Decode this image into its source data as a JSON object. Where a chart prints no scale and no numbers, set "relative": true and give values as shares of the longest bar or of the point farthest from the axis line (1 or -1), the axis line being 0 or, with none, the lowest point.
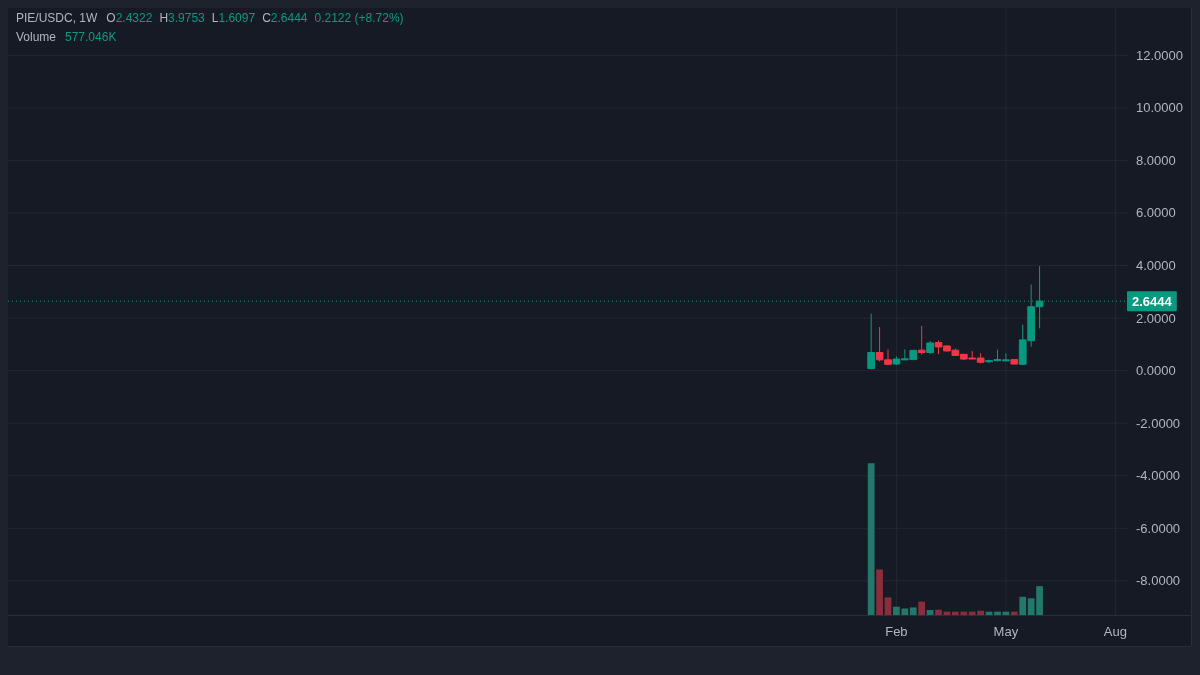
{
  "chart_data": [
    {
      "type": "candlestick",
      "title": "PIE/USDC, 1W",
      "annotations": [
        "O2.4322",
        "H3.9753",
        "L1.6097",
        "C2.6444",
        "0.2122 (+8.72%)"
      ],
      "categories": [
        null,
        null,
        null,
        null,
        null,
        null,
        null,
        null,
        null,
        null,
        null,
        null,
        null,
        null,
        null,
        null,
        null,
        null,
        null,
        null,
        null,
        null,
        null,
        null,
        null,
        null,
        null,
        null,
        null,
        null,
        null,
        null,
        null,
        null,
        null,
        null,
        null,
        null,
        null,
        null,
        null,
        null,
        null,
        null,
        null,
        null,
        null,
        null,
        null,
        null,
        null,
        null,
        null,
        null,
        null,
        null,
        null,
        null,
        null,
        null,
        null,
        null,
        null,
        null,
        null,
        null,
        null,
        null,
        null,
        null,
        null,
        null,
        null,
        null,
        null,
        null,
        null,
        null,
        null,
        null,
        null,
        null,
        null,
        null,
        null,
        null,
        null,
        null,
        null,
        null,
        null,
        null,
        null,
        null,
        null,
        null,
        null,
        null,
        null,
        null,
        null,
        null,
        null,
        null,
        null,
        "Feb",
        null,
        null,
        null,
        null,
        null,
        null,
        null,
        null,
        null,
        null,
        null,
        null,
        "May",
        null,
        null,
        null,
        null,
        null,
        null,
        null,
        null,
        null,
        null,
        null,
        null,
        "Aug",
        null
      ],
      "ohlc": [
        null,
        null,
        null,
        null,
        null,
        null,
        null,
        null,
        null,
        null,
        null,
        null,
        null,
        null,
        null,
        null,
        null,
        null,
        null,
        null,
        null,
        null,
        null,
        null,
        null,
        null,
        null,
        null,
        null,
        null,
        null,
        null,
        null,
        null,
        null,
        null,
        null,
        null,
        null,
        null,
        null,
        null,
        null,
        null,
        null,
        null,
        null,
        null,
        null,
        null,
        null,
        null,
        null,
        null,
        null,
        null,
        null,
        null,
        null,
        null,
        null,
        null,
        null,
        null,
        null,
        null,
        null,
        null,
        null,
        null,
        null,
        null,
        null,
        null,
        null,
        null,
        null,
        null,
        null,
        null,
        null,
        null,
        null,
        null,
        null,
        null,
        null,
        null,
        null,
        null,
        null,
        null,
        null,
        null,
        null,
        null,
        null,
        null,
        null,
        null,
        null,
        null,
        [
          0.08,
          2.17,
          0.05,
          0.69
        ],
        [
          0.69,
          1.66,
          0.35,
          0.41
        ],
        [
          0.41,
          0.8,
          0.2,
          0.24
        ],
        [
          0.25,
          0.54,
          0.21,
          0.44
        ],
        [
          0.41,
          0.81,
          0.4,
          0.45
        ],
        [
          0.42,
          0.78,
          0.42,
          0.77
        ],
        [
          0.78,
          1.7,
          0.61,
          0.69
        ],
        [
          0.69,
          1.13,
          0.63,
          1.05
        ],
        [
          1.07,
          1.15,
          0.63,
          0.9
        ],
        [
          0.94,
          0.96,
          0.72,
          0.75
        ],
        [
          0.78,
          0.84,
          0.56,
          0.58
        ],
        [
          0.62,
          0.64,
          0.4,
          0.44
        ],
        [
          0.48,
          0.75,
          0.44,
          0.44
        ],
        [
          0.48,
          0.66,
          0.27,
          0.32
        ],
        [
          0.34,
          0.42,
          0.28,
          0.38
        ],
        [
          0.38,
          0.8,
          0.35,
          0.42
        ],
        [
          0.4,
          0.65,
          0.35,
          0.41
        ],
        [
          0.42,
          0.43,
          0.23,
          0.25
        ],
        [
          0.24,
          1.75,
          0.21,
          1.17
        ],
        [
          1.14,
          3.28,
          0.91,
          2.43
        ],
        [
          2.4322,
          3.9753,
          1.6097,
          2.6444
        ],
        null,
        null,
        null,
        null,
        null,
        null,
        null,
        null,
        null,
        null
      ],
      "colors": [
        null,
        null,
        null,
        null,
        null,
        null,
        null,
        null,
        null,
        null,
        null,
        null,
        null,
        null,
        null,
        null,
        null,
        null,
        null,
        null,
        null,
        null,
        null,
        null,
        null,
        null,
        null,
        null,
        null,
        null,
        null,
        null,
        null,
        null,
        null,
        null,
        null,
        null,
        null,
        null,
        null,
        null,
        null,
        null,
        null,
        null,
        null,
        null,
        null,
        null,
        null,
        null,
        null,
        null,
        null,
        null,
        null,
        null,
        null,
        null,
        null,
        null,
        null,
        null,
        null,
        null,
        null,
        null,
        null,
        null,
        null,
        null,
        null,
        null,
        null,
        null,
        null,
        null,
        null,
        null,
        null,
        null,
        null,
        null,
        null,
        null,
        null,
        null,
        null,
        null,
        null,
        null,
        null,
        null,
        null,
        null,
        null,
        null,
        null,
        null,
        null,
        null,
        "#089981",
        "#f23645",
        "#f23645",
        "#089981",
        "#089981",
        "#089981",
        "#f23645",
        "#089981",
        "#f23645",
        "#f23645",
        "#f23645",
        "#f23645",
        "#f23645",
        "#f23645",
        "#089981",
        "#089981",
        "#089981",
        "#f23645",
        "#089981",
        "#089981",
        "#089981",
        null,
        null,
        null,
        null,
        null,
        null,
        null,
        null,
        null,
        null
      ],
      "ylim": [
        -9.3,
        13.8
      ],
      "yticks": [
        {
          "value": -8,
          "label": "-8.0000"
        },
        {
          "value": -6,
          "label": "-6.0000"
        },
        {
          "value": -4,
          "label": "-4.0000"
        },
        {
          "value": -2,
          "label": "-2.0000"
        },
        {
          "value": 0,
          "label": "0.0000"
        },
        {
          "value": 2,
          "label": "2.0000"
        },
        {
          "value": 4,
          "label": "4.0000"
        },
        {
          "value": 6,
          "label": "6.0000"
        },
        {
          "value": 8,
          "label": "8.0000"
        },
        {
          "value": 10,
          "label": "10.0000"
        },
        {
          "value": 12,
          "label": "12.0000"
        }
      ],
      "grid": true,
      "ref_lines": [
        {
          "axis": "y",
          "value": 2.6444,
          "label": "2.6444",
          "color": "#089981",
          "line_style": "dotted"
        }
      ]
    },
    {
      "type": "bar",
      "relative": true,
      "title": "Volume",
      "annotations": [
        "577.046K"
      ],
      "categories": [
        null,
        null,
        null,
        null,
        null,
        null,
        null,
        null,
        null,
        null,
        null,
        null,
        null,
        null,
        null,
        null,
        null,
        null,
        null,
        null,
        null,
        null,
        null,
        null,
        null,
        null,
        null,
        null,
        null,
        null,
        null,
        null,
        null,
        null,
        null,
        null,
        null,
        null,
        null,
        null,
        null,
        null,
        null,
        null,
        null,
        null,
        null,
        null,
        null,
        null,
        null,
        null,
        null,
        null,
        null,
        null,
        null,
        null,
        null,
        null,
        null,
        null,
        null,
        null,
        null,
        null,
        null,
        null,
        null,
        null,
        null,
        null,
        null,
        null,
        null,
        null,
        null,
        null,
        null,
        null,
        null,
        null,
        null,
        null,
        null,
        null,
        null,
        null,
        null,
        null,
        null,
        null,
        null,
        null,
        null,
        null,
        null,
        null,
        null,
        null,
        null,
        null,
        null,
        null,
        null,
        null,
        null,
        null,
        null,
        null,
        null,
        null,
        null,
        null,
        null,
        null,
        null,
        null,
        null,
        null,
        null,
        null,
        null,
        null,
        null,
        null,
        null,
        null,
        null,
        null,
        null,
        null,
        null
      ],
      "values": [
        null,
        null,
        null,
        null,
        null,
        null,
        null,
        null,
        null,
        null,
        null,
        null,
        null,
        null,
        null,
        null,
        null,
        null,
        null,
        null,
        null,
        null,
        null,
        null,
        null,
        null,
        null,
        null,
        null,
        null,
        null,
        null,
        null,
        null,
        null,
        null,
        null,
        null,
        null,
        null,
        null,
        null,
        null,
        null,
        null,
        null,
        null,
        null,
        null,
        null,
        null,
        null,
        null,
        null,
        null,
        null,
        null,
        null,
        null,
        null,
        null,
        null,
        null,
        null,
        null,
        null,
        null,
        null,
        null,
        null,
        null,
        null,
        null,
        null,
        null,
        null,
        null,
        null,
        null,
        null,
        null,
        null,
        null,
        null,
        null,
        null,
        null,
        null,
        null,
        null,
        null,
        null,
        null,
        null,
        null,
        null,
        null,
        null,
        null,
        null,
        null,
        null,
        1,
        0.3,
        0.116,
        0.055,
        0.043,
        0.05,
        0.088,
        0.033,
        0.035,
        0.022,
        0.022,
        0.022,
        0.022,
        0.028,
        0.022,
        0.022,
        0.022,
        0.022,
        0.12,
        0.11,
        0.19,
        null,
        null,
        null,
        null,
        null,
        null,
        null,
        null,
        null,
        null
      ],
      "colors": [
        null,
        null,
        null,
        null,
        null,
        null,
        null,
        null,
        null,
        null,
        null,
        null,
        null,
        null,
        null,
        null,
        null,
        null,
        null,
        null,
        null,
        null,
        null,
        null,
        null,
        null,
        null,
        null,
        null,
        null,
        null,
        null,
        null,
        null,
        null,
        null,
        null,
        null,
        null,
        null,
        null,
        null,
        null,
        null,
        null,
        null,
        null,
        null,
        null,
        null,
        null,
        null,
        null,
        null,
        null,
        null,
        null,
        null,
        null,
        null,
        null,
        null,
        null,
        null,
        null,
        null,
        null,
        null,
        null,
        null,
        null,
        null,
        null,
        null,
        null,
        null,
        null,
        null,
        null,
        null,
        null,
        null,
        null,
        null,
        null,
        null,
        null,
        null,
        null,
        null,
        null,
        null,
        null,
        null,
        null,
        null,
        null,
        null,
        null,
        null,
        null,
        null,
        "#22786b",
        "#8b2e3c",
        "#8b2e3c",
        "#22786b",
        "#22786b",
        "#22786b",
        "#8b2e3c",
        "#22786b",
        "#8b2e3c",
        "#8b2e3c",
        "#8b2e3c",
        "#8b2e3c",
        "#8b2e3c",
        "#8b2e3c",
        "#22786b",
        "#22786b",
        "#22786b",
        "#8b2e3c",
        "#22786b",
        "#22786b",
        "#22786b",
        null,
        null,
        null,
        null,
        null,
        null,
        null,
        null,
        null,
        null
      ]
    }
  ]
}
